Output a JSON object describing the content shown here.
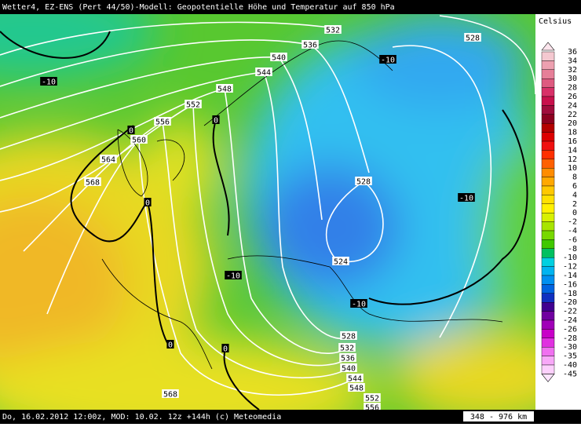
{
  "header": {
    "title": "Wetter4, EZ-ENS (Pert 44/50)-Modell: Geopotentielle Höhe und Temperatur auf 850 hPa"
  },
  "footer": {
    "text": "Do, 16.02.2012 12:00z, MOD: 10.02. 12z +144h (c) Meteomedia",
    "scale": "348 - 976 km"
  },
  "legend": {
    "title": "Celsius",
    "ticks": [
      36,
      34,
      32,
      30,
      28,
      26,
      24,
      22,
      20,
      18,
      16,
      14,
      12,
      10,
      8,
      6,
      4,
      2,
      0,
      -2,
      -4,
      -6,
      -8,
      -10,
      -12,
      -14,
      -16,
      -18,
      -20,
      -22,
      -24,
      -26,
      -28,
      -30,
      -35,
      -40,
      -45
    ],
    "colors": [
      "#f4c8d0",
      "#eda0b0",
      "#e67f98",
      "#de5a80",
      "#d83068",
      "#c8104c",
      "#a00c3c",
      "#8c0020",
      "#b40000",
      "#dc0000",
      "#f01010",
      "#ff3000",
      "#ff6000",
      "#ff8c00",
      "#ffa800",
      "#ffc800",
      "#ffe000",
      "#fff000",
      "#d8f000",
      "#a8e400",
      "#78d800",
      "#40c800",
      "#00c060",
      "#00d0e0",
      "#00b4f0",
      "#0090f0",
      "#0064e0",
      "#1030c0",
      "#400090",
      "#7000a0",
      "#a000b8",
      "#c800c8",
      "#e030e0",
      "#f070f0",
      "#f8a8f8",
      "#fcd0fc"
    ]
  },
  "contour_labels": [
    532,
    528,
    536,
    540,
    -10,
    544,
    -10,
    548,
    552,
    556,
    0,
    0,
    560,
    564,
    568,
    0,
    528,
    -10,
    524,
    -10,
    -10,
    528,
    532,
    536,
    540,
    544,
    548,
    552,
    556,
    0,
    0,
    568
  ]
}
